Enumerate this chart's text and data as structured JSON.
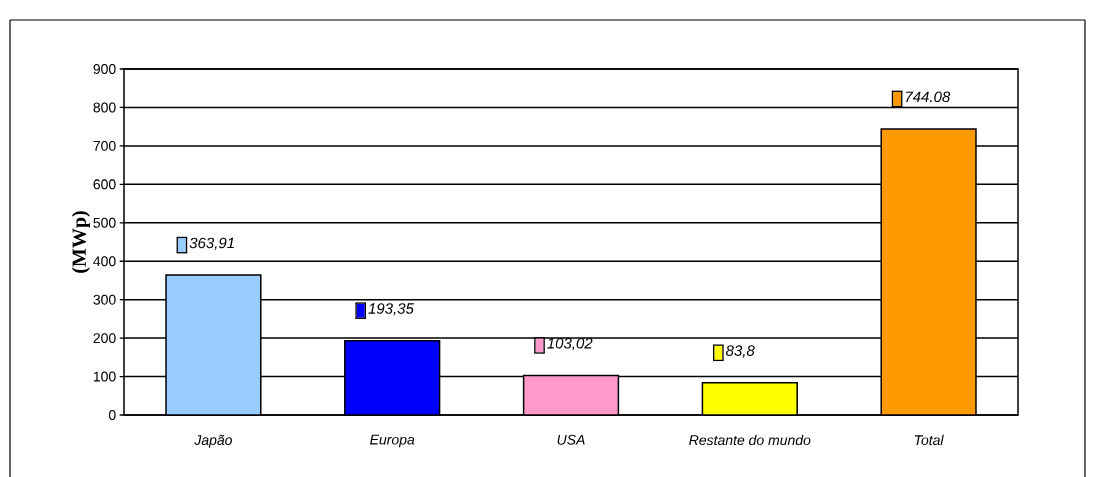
{
  "chart_data": {
    "type": "bar",
    "ylabel": "(MWp)",
    "categories": [
      "Japão",
      "Europa",
      "USA",
      "Restante do mundo",
      "Total"
    ],
    "values": [
      363.91,
      193.35,
      103.02,
      83.8,
      744.08
    ],
    "colors": [
      "#99ccff",
      "#0000ff",
      "#ff99cc",
      "#ffff00",
      "#ff9900"
    ],
    "value_labels": [
      "363,91",
      "193,35",
      "103,02",
      "83,8",
      "744.08"
    ],
    "ylim": [
      0,
      900
    ],
    "yticks": [
      0,
      100,
      200,
      300,
      400,
      500,
      600,
      700,
      800,
      900
    ],
    "grid": "y"
  }
}
